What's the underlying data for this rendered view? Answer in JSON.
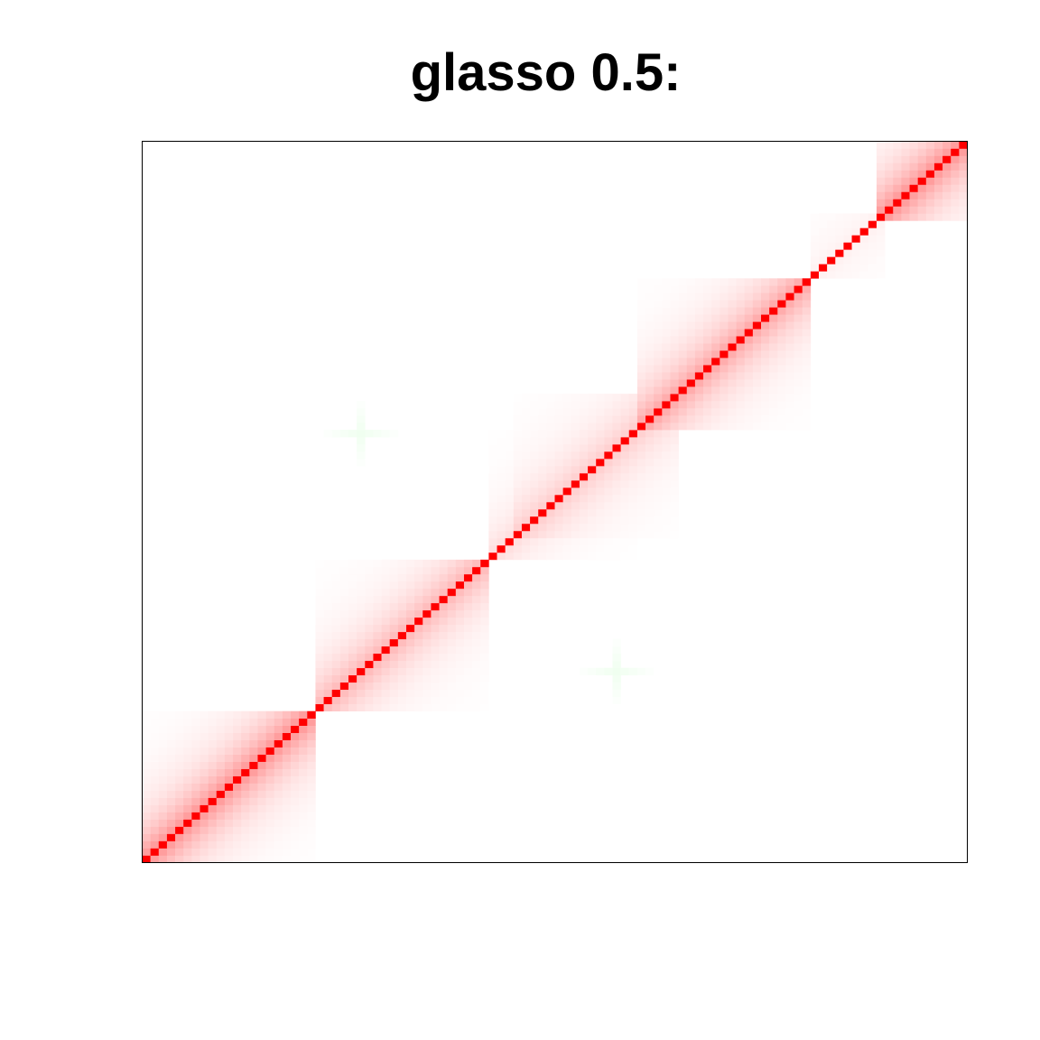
{
  "chart_data": {
    "type": "heatmap",
    "title": "glasso 0.5:",
    "xlabel": "",
    "ylabel": "",
    "axes_shown": false,
    "grid": false,
    "legend": "none",
    "matrix_size": 100,
    "value_range": [
      -1,
      1
    ],
    "diagonal_value": 1,
    "colors": {
      "positive": "#ff0000",
      "negative": "#00ff00",
      "zero": "#ffffff",
      "frame": "#000000"
    },
    "diagonal_blocks": [
      {
        "start": 1,
        "end": 21,
        "strength": 0.38,
        "decay": 0.6
      },
      {
        "start": 22,
        "end": 42,
        "strength": 0.26,
        "decay": 0.6
      },
      {
        "start": 43,
        "end": 60,
        "strength": 0.12,
        "decay": 0.6
      },
      {
        "start": 46,
        "end": 65,
        "strength": 0.18,
        "decay": 0.55
      },
      {
        "start": 61,
        "end": 81,
        "strength": 0.32,
        "decay": 0.6
      },
      {
        "start": 82,
        "end": 90,
        "strength": 0.05,
        "decay": 0.6
      },
      {
        "start": 90,
        "end": 100,
        "strength": 0.38,
        "decay": 0.6
      }
    ],
    "off_diagonal_features": [
      {
        "row": 60,
        "col": 27,
        "value": -0.06,
        "spread": 4
      },
      {
        "row": 27,
        "col": 58,
        "value": -0.06,
        "spread": 4
      }
    ]
  }
}
